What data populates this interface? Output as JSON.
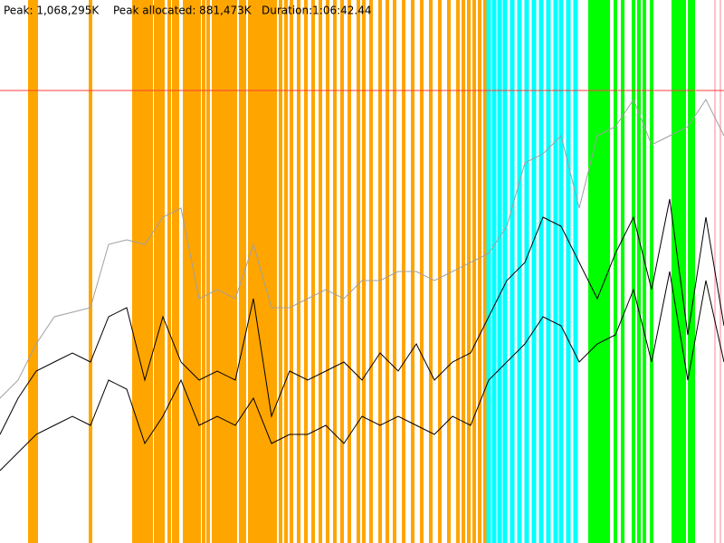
{
  "chart_data": {
    "type": "line",
    "stats": [
      "Peak: 1,068,295K",
      "Peak allocated: 881,473K",
      "Duration:1:06:42.44"
    ],
    "xlim": [
      0,
      800
    ],
    "ylim": [
      0,
      120
    ],
    "limit": 100,
    "limit_color": "#ff3b3b",
    "x": [
      0,
      20,
      40,
      60,
      80,
      100,
      120,
      140,
      160,
      180,
      200,
      220,
      240,
      260,
      280,
      300,
      320,
      340,
      360,
      380,
      400,
      420,
      440,
      460,
      480,
      500,
      520,
      540,
      560,
      580,
      600,
      620,
      640,
      660,
      680,
      700,
      720,
      740,
      760,
      780,
      800
    ],
    "series": [
      {
        "color": "#a0a0a0",
        "values": [
          32,
          36,
          44,
          50,
          51,
          52,
          66,
          67,
          66,
          72,
          74,
          54,
          56,
          54,
          66,
          52,
          52,
          54,
          56,
          54,
          58,
          58,
          60,
          60,
          58,
          60,
          62,
          64,
          70,
          84,
          86,
          90,
          74,
          90,
          92,
          98,
          88,
          90,
          92,
          98,
          90
        ]
      },
      {
        "color": "#000000",
        "values": [
          24,
          32,
          38,
          40,
          42,
          40,
          50,
          52,
          36,
          50,
          40,
          36,
          38,
          36,
          54,
          28,
          38,
          36,
          38,
          40,
          36,
          42,
          38,
          44,
          36,
          40,
          42,
          50,
          58,
          62,
          72,
          70,
          62,
          54,
          64,
          72,
          56,
          76,
          46,
          72,
          48
        ]
      },
      {
        "color": "#000000",
        "values": [
          16,
          20,
          24,
          26,
          28,
          26,
          36,
          34,
          22,
          28,
          36,
          26,
          28,
          26,
          32,
          22,
          24,
          24,
          26,
          22,
          28,
          26,
          28,
          26,
          24,
          28,
          26,
          36,
          40,
          44,
          50,
          48,
          40,
          44,
          46,
          56,
          40,
          60,
          36,
          58,
          40
        ]
      }
    ],
    "events": [
      {
        "color": "#ffa500",
        "x": [
          33,
          36,
          40,
          100,
          148,
          150,
          153,
          156,
          160,
          163,
          167,
          172,
          176,
          180,
          187,
          192,
          196,
          204,
          208,
          212,
          216,
          220,
          225,
          230,
          236,
          240,
          244,
          248,
          252,
          256,
          260,
          266,
          270,
          276,
          280,
          284,
          288,
          292,
          296,
          300,
          304,
          310,
          316,
          322,
          330,
          338,
          346,
          354,
          362,
          370,
          378,
          386,
          396,
          402,
          410,
          420,
          428,
          436,
          446,
          456,
          466,
          476,
          486,
          496,
          506,
          512,
          518,
          524,
          530,
          536
        ]
      },
      {
        "color": "#00ffff",
        "x": [
          540,
          546,
          552,
          558,
          566,
          574,
          582,
          590,
          598,
          606,
          614,
          620,
          628,
          636
        ]
      },
      {
        "color": "#00ff00",
        "x": [
          652,
          656,
          660,
          664,
          668,
          672,
          680,
          688,
          700,
          706,
          712,
          720,
          744,
          748,
          752,
          756,
          762,
          766
        ]
      },
      {
        "color": "#ffc0cb",
        "x": [
          790,
          796
        ]
      }
    ]
  }
}
